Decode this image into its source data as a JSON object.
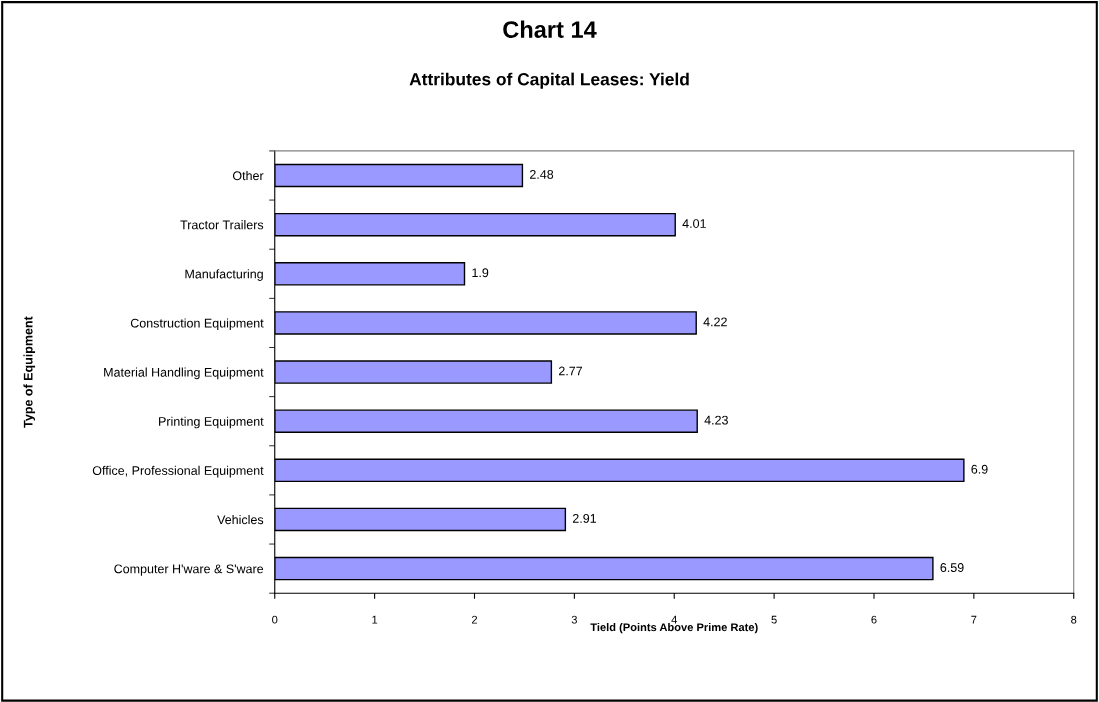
{
  "chart_data": {
    "type": "bar",
    "orientation": "horizontal",
    "title": "Chart 14",
    "subtitle": "Attributes of Capital Leases: Yield",
    "xlabel": "Tield (Points Above Prime Rate)",
    "ylabel": "Type of Equipment",
    "categories": [
      "Other",
      "Tractor Trailers",
      "Manufacturing",
      "Construction Equipment",
      "Material Handling Equipment",
      "Printing Equipment",
      "Office, Professional Equipment",
      "Vehicles",
      "Computer H'ware & S'ware"
    ],
    "values": [
      2.48,
      4.01,
      1.9,
      4.22,
      2.77,
      4.23,
      6.9,
      2.91,
      6.59
    ],
    "color": "#9999ff",
    "xlim": [
      0,
      8
    ],
    "xticks": [
      0,
      1,
      2,
      3,
      4,
      5,
      6,
      7,
      8
    ],
    "data_labels": true,
    "grid": false,
    "legend": false
  }
}
